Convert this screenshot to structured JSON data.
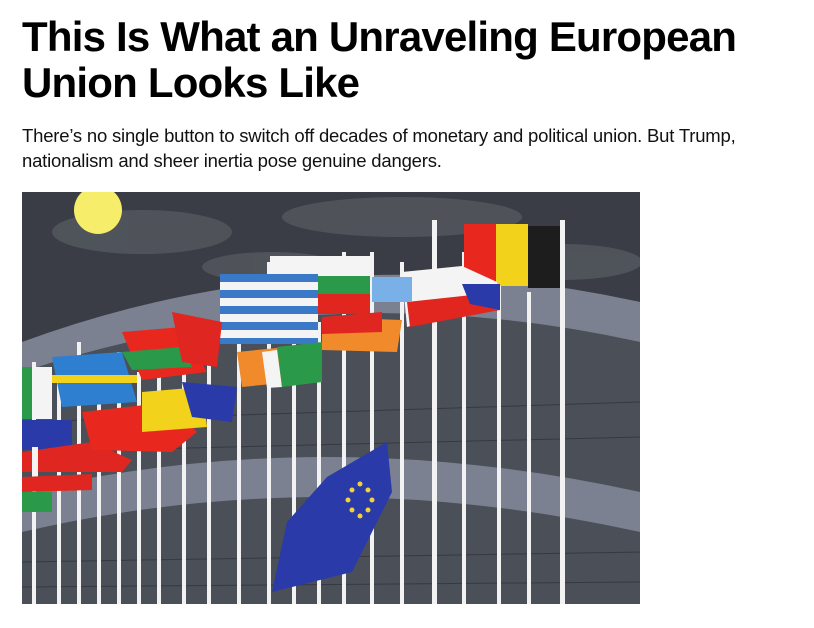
{
  "article": {
    "headline": "This Is What an Unraveling European Union Looks Like",
    "dek": "There’s no single button to switch off decades of monetary and political union. But Trump, nationalism and sheer inertia pose genuine dangers.",
    "illustration": {
      "subject": "flags",
      "colors": {
        "sky": "#3a3d45",
        "building": "#7b8190",
        "moon": "#f6ee6a",
        "eu_blue": "#2a3aa8",
        "eu_star": "#f2d23a"
      }
    }
  }
}
